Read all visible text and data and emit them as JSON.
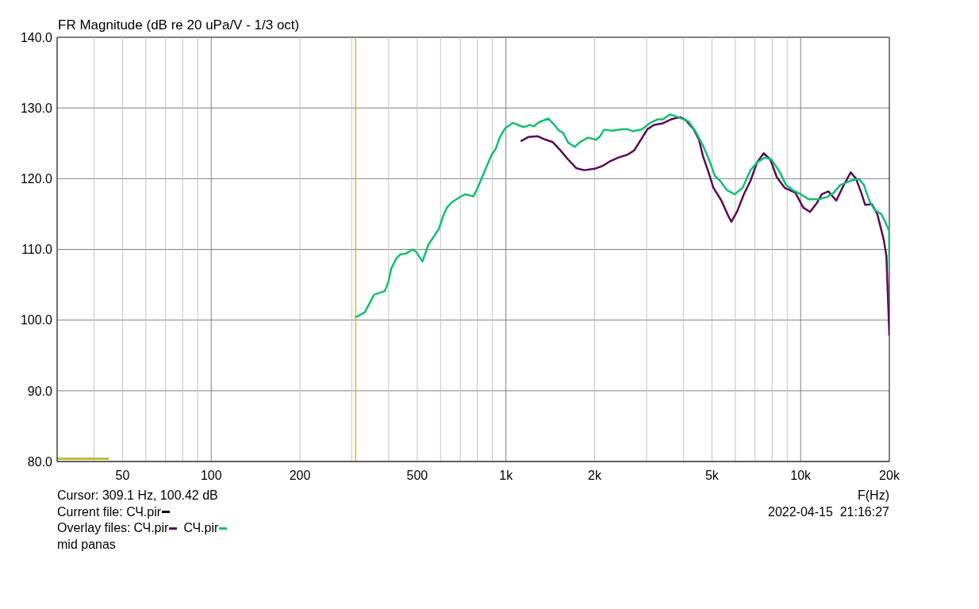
{
  "chart_data": {
    "type": "line",
    "title": "FR Magnitude (dB re 20 uPa/V - 1/3 oct)",
    "xlabel": "F(Hz)",
    "legend_title": "Overlay files:",
    "legend": "bottom left",
    "log": "x",
    "grid": true,
    "xlim": [
      30,
      20000
    ],
    "ylim": [
      80,
      140
    ],
    "xticks": [
      {
        "value": 40,
        "label": null
      },
      50,
      {
        "value": 60,
        "label": null
      },
      {
        "value": 70,
        "label": null
      },
      {
        "value": 80,
        "label": null
      },
      {
        "value": 90,
        "label": null
      },
      100,
      200,
      {
        "value": 300,
        "label": null
      },
      {
        "value": 400,
        "label": null
      },
      500,
      {
        "value": 600,
        "label": null
      },
      {
        "value": 700,
        "label": null
      },
      {
        "value": 800,
        "label": null
      },
      {
        "value": 900,
        "label": null
      },
      {
        "value": 1000,
        "label": "1k"
      },
      {
        "value": 2000,
        "label": "2k"
      },
      {
        "value": 3000,
        "label": null
      },
      {
        "value": 4000,
        "label": null
      },
      {
        "value": 5000,
        "label": "5k"
      },
      {
        "value": 6000,
        "label": null
      },
      {
        "value": 7000,
        "label": null
      },
      {
        "value": 8000,
        "label": null
      },
      {
        "value": 9000,
        "label": null
      },
      {
        "value": 10000,
        "label": "10k"
      },
      {
        "value": 20000,
        "label": "20k"
      }
    ],
    "yticks": [
      {
        "value": 80,
        "label": "80.0"
      },
      {
        "value": 90,
        "label": "90.0"
      },
      {
        "value": 100,
        "label": "100.0"
      },
      {
        "value": 110,
        "label": "110.0"
      },
      {
        "value": 120,
        "label": "120.0"
      },
      {
        "value": 130,
        "label": "130.0"
      },
      {
        "value": 140,
        "label": "140.0"
      }
    ],
    "series": [
      {
        "color": "#b4b414",
        "x": [
          30,
          45
        ],
        "values": [
          80.4,
          80.4
        ]
      },
      {
        "name": "СЧ.pir",
        "color": "#5a0a5a",
        "x": [
          1122,
          1194,
          1283,
          1365,
          1438,
          1531,
          1627,
          1731,
          1841,
          2000,
          2128,
          2264,
          2410,
          2589,
          2724,
          2871,
          3022,
          3184,
          3388,
          3642,
          3793,
          3910,
          4074,
          4335,
          4519,
          4662,
          4860,
          5060,
          5385,
          5672,
          5821,
          6095,
          6418,
          6758,
          7116,
          7495,
          7893,
          8302,
          8834,
          9600,
          10210,
          10760,
          11330,
          11800,
          12420,
          13210,
          13930,
          14790,
          15420,
          16060,
          16560,
          17450,
          18200,
          19160,
          19550,
          20000
        ],
        "values": [
          125.3,
          125.9,
          126.0,
          125.5,
          125.2,
          124.0,
          122.7,
          121.5,
          121.2,
          121.4,
          121.8,
          122.5,
          123.0,
          123.4,
          124.0,
          125.5,
          127.0,
          127.6,
          127.8,
          128.4,
          128.6,
          128.7,
          128.3,
          127.0,
          125.5,
          123.2,
          121.0,
          118.7,
          116.9,
          114.8,
          113.9,
          115.4,
          117.8,
          119.7,
          122.3,
          123.6,
          122.7,
          120.2,
          118.7,
          118.0,
          115.9,
          115.3,
          116.5,
          117.8,
          118.2,
          116.9,
          118.9,
          120.9,
          120.0,
          118.0,
          116.3,
          116.4,
          115.0,
          111.3,
          109.0,
          97.8
        ]
      },
      {
        "name": "СЧ.pir",
        "color": "#10c070",
        "x": [
          309,
          332,
          357,
          388,
          400,
          408,
          426,
          439,
          458,
          482,
          497,
          521,
          546,
          569,
          592,
          611,
          630,
          657,
          698,
          728,
          775,
          798,
          859,
          895,
          923,
          952,
          992,
          1055,
          1146,
          1206,
          1244,
          1297,
          1394,
          1468,
          1513,
          1562,
          1627,
          1713,
          1786,
          1900,
          2024,
          2086,
          2151,
          2311,
          2484,
          2589,
          2698,
          2899,
          3084,
          3281,
          3420,
          3600,
          3793,
          3950,
          4160,
          4383,
          4662,
          4910,
          5117,
          5331,
          5613,
          5970,
          6353,
          6758,
          7116,
          7571,
          7967,
          8477,
          8925,
          9396,
          10000,
          10640,
          11540,
          12280,
          12940,
          13620,
          14790,
          15740,
          16400,
          17100,
          17820,
          18770,
          19360,
          19970,
          20000
        ],
        "values": [
          100.4,
          101.1,
          103.6,
          104.1,
          105.5,
          107.3,
          108.8,
          109.3,
          109.4,
          110.0,
          109.6,
          108.3,
          110.7,
          111.8,
          112.9,
          114.6,
          115.9,
          116.7,
          117.4,
          117.8,
          117.5,
          118.5,
          121.7,
          123.4,
          124.2,
          125.8,
          127.1,
          127.9,
          127.3,
          127.6,
          127.4,
          128.0,
          128.5,
          127.5,
          126.8,
          126.5,
          125.1,
          124.5,
          125.2,
          125.8,
          125.5,
          126.0,
          126.9,
          126.8,
          127.0,
          127.0,
          126.7,
          127.0,
          127.9,
          128.4,
          128.4,
          129.1,
          128.8,
          128.5,
          128.1,
          126.8,
          124.7,
          122.5,
          120.4,
          119.7,
          118.4,
          117.8,
          118.7,
          121.2,
          122.3,
          123.0,
          122.7,
          121.0,
          119.1,
          118.4,
          117.8,
          117.1,
          117.1,
          117.4,
          118.0,
          119.1,
          119.7,
          120.0,
          119.1,
          116.9,
          115.6,
          115.0,
          113.9,
          112.6,
          107.1
        ]
      }
    ],
    "ref_lines": [
      {
        "axis": "x",
        "value": 309.1,
        "color": "#c8c800"
      }
    ],
    "annotations": [
      "Cursor: 309.1 Hz, 100.42 dB",
      "Current file: СЧ.pir",
      "mid panas",
      "2022-04-15  21:16:27"
    ]
  }
}
